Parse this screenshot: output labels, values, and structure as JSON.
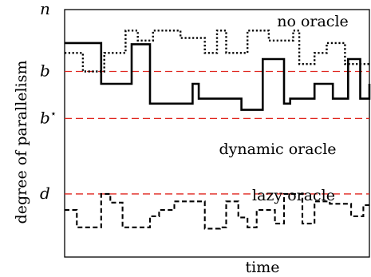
{
  "diagram": {
    "y_axis_label": "degree of parallelism",
    "x_axis_label": "time",
    "levels": [
      {
        "key": "n",
        "label": "n",
        "star": false,
        "level": 1.0,
        "threshold": false
      },
      {
        "key": "b",
        "label": "b",
        "star": false,
        "level": 0.75,
        "threshold": true
      },
      {
        "key": "bstar",
        "label": "b",
        "star": true,
        "level": 0.56,
        "threshold": true
      },
      {
        "key": "d",
        "label": "d",
        "star": false,
        "level": 0.255,
        "threshold": true
      }
    ],
    "series": [
      {
        "name": "no oracle",
        "style": "dotted",
        "steps": [
          [
            0,
            0.825
          ],
          [
            0.06,
            0.75
          ],
          [
            0.13,
            0.825
          ],
          [
            0.2,
            0.915
          ],
          [
            0.24,
            0.875
          ],
          [
            0.29,
            0.915
          ],
          [
            0.38,
            0.885
          ],
          [
            0.46,
            0.825
          ],
          [
            0.5,
            0.915
          ],
          [
            0.53,
            0.825
          ],
          [
            0.6,
            0.915
          ],
          [
            0.67,
            0.875
          ],
          [
            0.75,
            0.915
          ],
          [
            0.77,
            0.78
          ],
          [
            0.82,
            0.825
          ],
          [
            0.86,
            0.865
          ],
          [
            0.92,
            0.78
          ],
          [
            0.96,
            0.78
          ],
          [
            1.0,
            0.78
          ]
        ]
      },
      {
        "name": "dynamic oracle",
        "style": "solid",
        "steps": [
          [
            0,
            0.865
          ],
          [
            0.12,
            0.7
          ],
          [
            0.22,
            0.86
          ],
          [
            0.28,
            0.7
          ],
          [
            0.28,
            0.62
          ],
          [
            0.36,
            0.62
          ],
          [
            0.42,
            0.7
          ],
          [
            0.44,
            0.64
          ],
          [
            0.58,
            0.595
          ],
          [
            0.65,
            0.8
          ],
          [
            0.72,
            0.62
          ],
          [
            0.74,
            0.64
          ],
          [
            0.82,
            0.7
          ],
          [
            0.88,
            0.64
          ],
          [
            0.93,
            0.8
          ],
          [
            0.97,
            0.64
          ],
          [
            1.0,
            0.7
          ]
        ]
      },
      {
        "name": "lazy oracle",
        "style": "dashed",
        "steps": [
          [
            0,
            0.19
          ],
          [
            0.04,
            0.12
          ],
          [
            0.06,
            0.12
          ],
          [
            0.12,
            0.255
          ],
          [
            0.15,
            0.22
          ],
          [
            0.19,
            0.12
          ],
          [
            0.23,
            0.12
          ],
          [
            0.28,
            0.165
          ],
          [
            0.31,
            0.19
          ],
          [
            0.36,
            0.225
          ],
          [
            0.46,
            0.115
          ],
          [
            0.51,
            0.12
          ],
          [
            0.53,
            0.225
          ],
          [
            0.57,
            0.16
          ],
          [
            0.6,
            0.12
          ],
          [
            0.63,
            0.19
          ],
          [
            0.69,
            0.135
          ],
          [
            0.72,
            0.255
          ],
          [
            0.78,
            0.135
          ],
          [
            0.82,
            0.225
          ],
          [
            0.87,
            0.215
          ],
          [
            0.94,
            0.165
          ],
          [
            0.98,
            0.21
          ],
          [
            1.0,
            0.21
          ]
        ]
      }
    ],
    "series_label_order": [
      "no oracle",
      "dynamic oracle",
      "lazy oracle"
    ]
  },
  "colors": {
    "threshold": "#e0261f",
    "ink": "#000000"
  }
}
